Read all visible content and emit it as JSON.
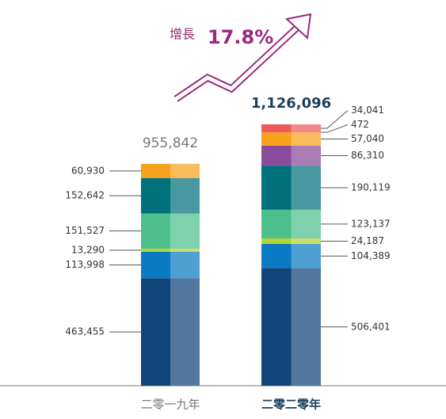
{
  "chart_data": {
    "type": "stacked_bar",
    "categories": [
      "二零一九年",
      "二零二零年"
    ],
    "series": [
      {
        "color": "#11457a",
        "values": [
          463455,
          506401
        ],
        "value_labels": [
          "463,455",
          "506,401"
        ]
      },
      {
        "color": "#0b7ac4",
        "values": [
          113998,
          104389
        ],
        "value_labels": [
          "113,998",
          "104,389"
        ]
      },
      {
        "color": "#b5d334",
        "values": [
          13290,
          24187
        ],
        "value_labels": [
          "13,290",
          "24,187"
        ]
      },
      {
        "color": "#4cbf8c",
        "values": [
          151527,
          123137
        ],
        "value_labels": [
          "151,527",
          "123,137"
        ]
      },
      {
        "color": "#00717c",
        "values": [
          152642,
          190119
        ],
        "value_labels": [
          "152,642",
          "190,119"
        ]
      },
      {
        "color": "#8a4b9d",
        "values": [
          null,
          86310
        ],
        "value_labels": [
          null,
          "86,310"
        ]
      },
      {
        "color": "#f7a11d",
        "values": [
          60930,
          57040
        ],
        "value_labels": [
          "60,930",
          "57,040"
        ]
      },
      {
        "color": "#f5894e",
        "values": [
          null,
          472
        ],
        "value_labels": [
          null,
          "472"
        ]
      },
      {
        "color": "#ee5a5c",
        "values": [
          null,
          34041
        ],
        "value_labels": [
          null,
          "34,041"
        ]
      }
    ],
    "totals": [
      955842,
      1126096
    ],
    "total_labels": [
      "955,842",
      "1,126,096"
    ],
    "annotation": "增長",
    "growth_label": "17.8%"
  }
}
